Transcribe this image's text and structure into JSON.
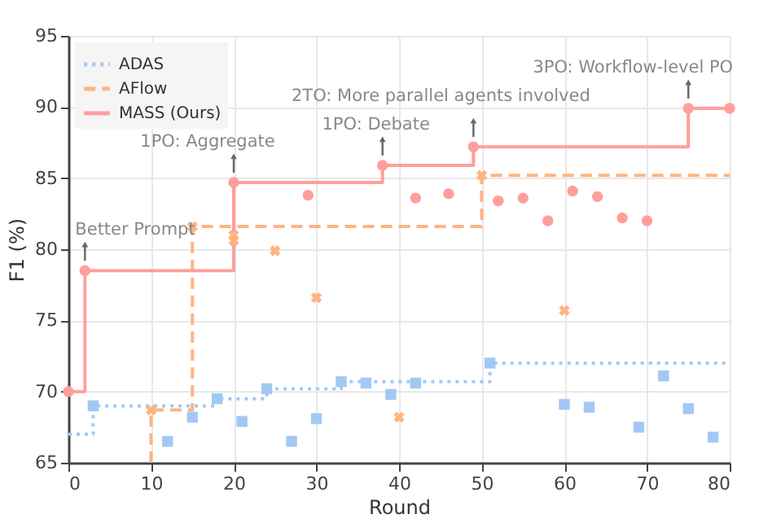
{
  "chart_data": {
    "type": "step",
    "xlabel": "Round",
    "ylabel": "F1 (%)",
    "xlim": [
      0,
      80
    ],
    "xticks": [
      0,
      10,
      20,
      30,
      40,
      50,
      60,
      70,
      80
    ],
    "ylim": [
      65,
      95
    ],
    "yticks": [
      65,
      70,
      75,
      80,
      85,
      90,
      95
    ],
    "grid": true,
    "legend": "top left",
    "series": [
      {
        "type": "step",
        "name": "ADAS",
        "color": "#a1c9f4",
        "line_style": "dotted",
        "x": [
          0,
          3,
          18,
          24,
          33,
          51,
          80
        ],
        "values": [
          67.0,
          69.0,
          69.5,
          70.2,
          70.7,
          72.0,
          72.0
        ]
      },
      {
        "type": "step",
        "name": "AFlow",
        "color": "#ffb482",
        "line_style": "dashed",
        "x": [
          10,
          10,
          15,
          50,
          80
        ],
        "values": [
          65,
          68.7,
          81.6,
          85.2,
          85.2
        ]
      },
      {
        "type": "step",
        "name": "MASS (Ours)",
        "color": "#ff9f9b",
        "line_style": "solid",
        "x": [
          0,
          2,
          20,
          38,
          49,
          75,
          80
        ],
        "values": [
          70.0,
          78.5,
          84.7,
          85.9,
          87.2,
          89.9,
          89.9
        ]
      },
      {
        "type": "scatter",
        "color": "#a1c9f4",
        "marker": "square",
        "x": [
          3,
          12,
          15,
          18,
          21,
          24,
          27,
          30,
          33,
          36,
          39,
          42,
          51,
          60,
          63,
          69,
          72,
          75,
          78
        ],
        "values": [
          69.0,
          66.5,
          68.2,
          69.5,
          67.9,
          70.2,
          66.5,
          68.1,
          70.7,
          70.6,
          69.8,
          70.6,
          72.0,
          69.1,
          68.9,
          67.5,
          71.1,
          68.8,
          66.8
        ]
      },
      {
        "type": "scatter",
        "color": "#ffb482",
        "marker": "cross",
        "x": [
          10,
          15,
          20,
          20,
          25,
          30,
          40,
          50,
          60
        ],
        "values": [
          68.7,
          81.6,
          80.6,
          81.0,
          79.9,
          76.6,
          68.2,
          85.2,
          75.7
        ]
      },
      {
        "type": "scatter",
        "color": "#ff9f9b",
        "marker": "circle",
        "x": [
          0,
          2,
          20,
          29,
          38,
          42,
          46,
          49,
          52,
          55,
          58,
          61,
          64,
          67,
          70,
          75,
          80
        ],
        "values": [
          70.0,
          78.5,
          84.7,
          83.8,
          85.9,
          83.6,
          83.9,
          87.2,
          83.4,
          83.6,
          82.0,
          84.1,
          83.7,
          82.2,
          82.0,
          89.9,
          89.9
        ]
      }
    ],
    "annotations": [
      {
        "text": "Better Prompt",
        "x": 2,
        "y": 78.5
      },
      {
        "text": "1PO: Aggregate",
        "x": 20,
        "y": 84.7
      },
      {
        "text": "1PO: Debate",
        "x": 38,
        "y": 85.9
      },
      {
        "text": "2TO: More parallel agents involved",
        "x": 49,
        "y": 87.2
      },
      {
        "text": "3PO: Workflow-level PO",
        "x": 75,
        "y": 89.9
      }
    ]
  }
}
